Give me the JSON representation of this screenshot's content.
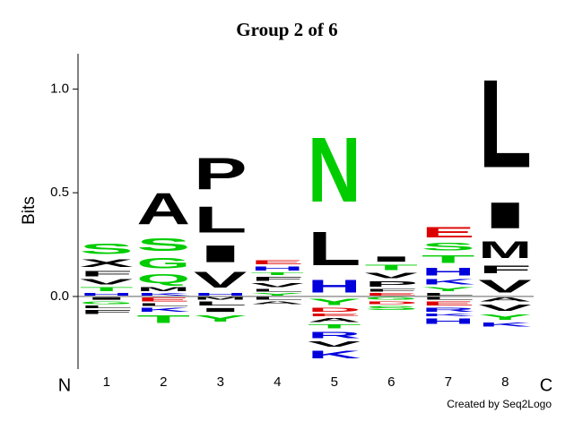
{
  "chart_data": {
    "type": "logo",
    "title": "Group 2 of 6",
    "y_label": "Bits",
    "n_label": "N",
    "c_label": "C",
    "credit": "Created by Seq2Logo",
    "ylim": [
      -0.35,
      1.17
    ],
    "yticks": [
      {
        "value": 0,
        "label": "0.0"
      },
      {
        "value": 0.5,
        "label": "0.5"
      },
      {
        "value": 1,
        "label": "1.0"
      }
    ],
    "letter_colors": {
      "A": "#000000",
      "V": "#000000",
      "L": "#000000",
      "I": "#000000",
      "P": "#000000",
      "F": "#000000",
      "M": "#000000",
      "W": "#000000",
      "X": "#000000",
      "S": "#00cc00",
      "T": "#00cc00",
      "G": "#00cc00",
      "Y": "#00cc00",
      "N": "#00cc00",
      "Q": "#00cc00",
      "C": "#00cc00",
      "H": "#0000dd",
      "K": "#0000dd",
      "R": "#0000dd",
      "D": "#dd0000",
      "E": "#dd0000"
    },
    "positions": [
      {
        "label": "1",
        "above": [
          {
            "letter": "H",
            "height": 0.02
          },
          {
            "letter": "T",
            "height": 0.03
          },
          {
            "letter": "V",
            "height": 0.04
          },
          {
            "letter": "F",
            "height": 0.04
          },
          {
            "letter": "X",
            "height": 0.06
          },
          {
            "letter": "S",
            "height": 0.08
          }
        ],
        "below": [
          {
            "letter": "I",
            "height": 0.02
          },
          {
            "letter": "G",
            "height": 0.02
          },
          {
            "letter": "L",
            "height": 0.02
          },
          {
            "letter": "F",
            "height": 0.03
          }
        ]
      },
      {
        "label": "2",
        "above": [
          {
            "letter": "K",
            "height": 0.02
          },
          {
            "letter": "M",
            "height": 0.03
          },
          {
            "letter": "Q",
            "height": 0.07
          },
          {
            "letter": "G",
            "height": 0.08
          },
          {
            "letter": "S",
            "height": 0.1
          },
          {
            "letter": "A",
            "height": 0.24
          }
        ],
        "below": [
          {
            "letter": "E",
            "height": 0.03
          },
          {
            "letter": "L",
            "height": 0.02
          },
          {
            "letter": "K",
            "height": 0.03
          },
          {
            "letter": "T",
            "height": 0.06
          }
        ]
      },
      {
        "label": "3",
        "above": [
          {
            "letter": "H",
            "height": 0.02
          },
          {
            "letter": "V",
            "height": 0.12
          },
          {
            "letter": "I",
            "height": 0.13
          },
          {
            "letter": "L",
            "height": 0.2
          },
          {
            "letter": "P",
            "height": 0.24
          }
        ],
        "below": [
          {
            "letter": "M",
            "height": 0.02
          },
          {
            "letter": "L",
            "height": 0.03
          },
          {
            "letter": "I",
            "height": 0.03
          },
          {
            "letter": "Y",
            "height": 0.05
          }
        ]
      },
      {
        "label": "4",
        "above": [
          {
            "letter": "Y",
            "height": 0.02
          },
          {
            "letter": "L",
            "height": 0.02
          },
          {
            "letter": "V",
            "height": 0.03
          },
          {
            "letter": "F",
            "height": 0.03
          },
          {
            "letter": "T",
            "height": 0.02
          },
          {
            "letter": "H",
            "height": 0.03
          },
          {
            "letter": "E",
            "height": 0.03
          }
        ],
        "below": [
          {
            "letter": "L",
            "height": 0.02
          },
          {
            "letter": "A",
            "height": 0.02
          }
        ]
      },
      {
        "label": "5",
        "above": [
          {
            "letter": "H",
            "height": 0.1
          },
          {
            "letter": "L",
            "height": 0.26
          },
          {
            "letter": "N",
            "height": 0.5
          }
        ],
        "below": [
          {
            "letter": "Y",
            "height": 0.05
          },
          {
            "letter": "D",
            "height": 0.03
          },
          {
            "letter": "E",
            "height": 0.02
          },
          {
            "letter": "A",
            "height": 0.03
          },
          {
            "letter": "T",
            "height": 0.03
          },
          {
            "letter": "R",
            "height": 0.05
          },
          {
            "letter": "V",
            "height": 0.04
          },
          {
            "letter": "K",
            "height": 0.06
          }
        ]
      },
      {
        "label": "6",
        "above": [
          {
            "letter": "E",
            "height": 0.02
          },
          {
            "letter": "F",
            "height": 0.02
          },
          {
            "letter": "P",
            "height": 0.04
          },
          {
            "letter": "V",
            "height": 0.04
          },
          {
            "letter": "T",
            "height": 0.04
          },
          {
            "letter": "I",
            "height": 0.04
          }
        ],
        "below": [
          {
            "letter": "G",
            "height": 0.02
          },
          {
            "letter": "D",
            "height": 0.02
          },
          {
            "letter": "S",
            "height": 0.03
          }
        ]
      },
      {
        "label": "7",
        "above": [
          {
            "letter": "L",
            "height": 0.02
          },
          {
            "letter": "Y",
            "height": 0.03
          },
          {
            "letter": "K",
            "height": 0.04
          },
          {
            "letter": "H",
            "height": 0.06
          },
          {
            "letter": "T",
            "height": 0.06
          },
          {
            "letter": "S",
            "height": 0.06
          },
          {
            "letter": "E",
            "height": 0.08
          }
        ],
        "below": [
          {
            "letter": "L",
            "height": 0.02
          },
          {
            "letter": "E",
            "height": 0.03
          },
          {
            "letter": "R",
            "height": 0.03
          },
          {
            "letter": "K",
            "height": 0.02
          },
          {
            "letter": "H",
            "height": 0.04
          }
        ]
      },
      {
        "label": "8",
        "above": [
          {
            "letter": "V",
            "height": 0.1
          },
          {
            "letter": "F",
            "height": 0.06
          },
          {
            "letter": "M",
            "height": 0.13
          },
          {
            "letter": "I",
            "height": 0.2
          },
          {
            "letter": "L",
            "height": 0.68
          }
        ],
        "below": [
          {
            "letter": "A",
            "height": 0.03
          },
          {
            "letter": "V",
            "height": 0.05
          },
          {
            "letter": "Y",
            "height": 0.04
          },
          {
            "letter": "K",
            "height": 0.03
          }
        ]
      }
    ]
  }
}
